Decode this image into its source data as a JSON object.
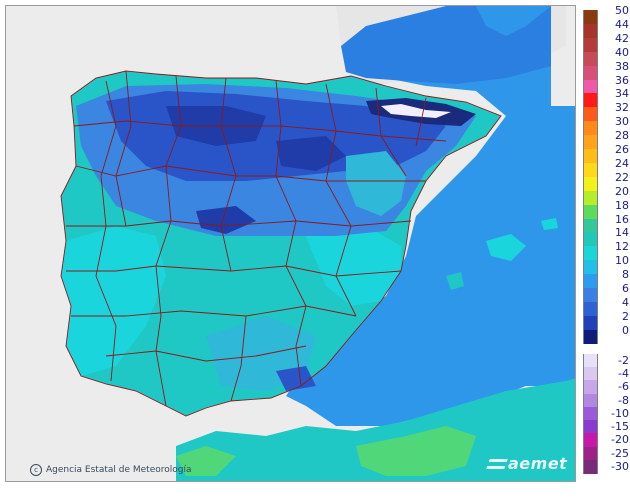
{
  "map": {
    "credit": "Agencia Estatal de Meteorología",
    "credit_icon": "copyright-icon",
    "logo": "aemet",
    "colors": {
      "sea": "#2f97ea",
      "atlantic_sea": "#f0f0f0",
      "no_data": "#e8e8e8",
      "border_line": "#8b1a1a",
      "teal": "#1fc8c4",
      "cyan": "#1ad6dc",
      "aqua": "#2fb8d8",
      "blue_mid": "#3a86e0",
      "blue_dark": "#2a55c8",
      "blue_deep": "#1f3ca8",
      "green": "#4fd77a"
    }
  },
  "legend": {
    "positive": [
      {
        "label": "50",
        "color": "#8a3a10"
      },
      {
        "label": "44",
        "color": "#a5342a"
      },
      {
        "label": "42",
        "color": "#b53a3a"
      },
      {
        "label": "40",
        "color": "#c64a58"
      },
      {
        "label": "38",
        "color": "#d8507a"
      },
      {
        "label": "36",
        "color": "#f058a8"
      },
      {
        "label": "34",
        "color": "#ff1a1a"
      },
      {
        "label": "32",
        "color": "#ff5a1a"
      },
      {
        "label": "30",
        "color": "#ff8a1a"
      },
      {
        "label": "28",
        "color": "#ffa31a"
      },
      {
        "label": "26",
        "color": "#ffbd1a"
      },
      {
        "label": "24",
        "color": "#ffd81a"
      },
      {
        "label": "22",
        "color": "#f2f21a"
      },
      {
        "label": "20",
        "color": "#b4ee2a"
      },
      {
        "label": "18",
        "color": "#5cdc5c"
      },
      {
        "label": "16",
        "color": "#32c89a"
      },
      {
        "label": "14",
        "color": "#20c8b8"
      },
      {
        "label": "12",
        "color": "#1ad6d6"
      },
      {
        "label": "10",
        "color": "#22c0e6"
      },
      {
        "label": "8",
        "color": "#2e9cee"
      },
      {
        "label": "6",
        "color": "#3a80e4"
      },
      {
        "label": "4",
        "color": "#2e62d4"
      },
      {
        "label": "2",
        "color": "#2040b8"
      },
      {
        "label": "0",
        "color": "#101c7c"
      }
    ],
    "negative": [
      {
        "label": "-2",
        "color": "#e8e0f8"
      },
      {
        "label": "-4",
        "color": "#d8c8f2"
      },
      {
        "label": "-6",
        "color": "#c6a8ea"
      },
      {
        "label": "-8",
        "color": "#b088e2"
      },
      {
        "label": "-10",
        "color": "#9a5ada"
      },
      {
        "label": "-15",
        "color": "#8a3ad0"
      },
      {
        "label": "-20",
        "color": "#c818a8"
      },
      {
        "label": "-25",
        "color": "#a0208a"
      },
      {
        "label": "-30",
        "color": "#7a2a7a"
      }
    ]
  }
}
